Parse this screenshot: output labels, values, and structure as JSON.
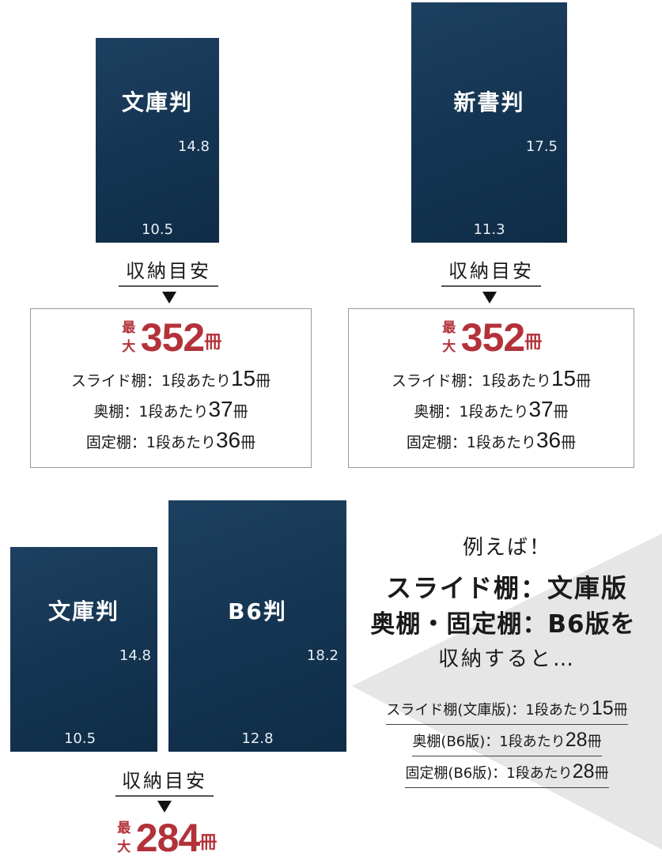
{
  "top_left": {
    "book": {
      "title": "文庫判",
      "height": "14.8",
      "width": "10.5"
    },
    "label": "収納目安",
    "max_prefix": "最大",
    "max_value": "352",
    "max_unit": "冊",
    "rows": [
      {
        "text": "スライド棚：1段あたり",
        "value": "15",
        "unit": "冊"
      },
      {
        "text": "奥棚：1段あたり",
        "value": "37",
        "unit": "冊"
      },
      {
        "text": "固定棚：1段あたり",
        "value": "36",
        "unit": "冊"
      }
    ]
  },
  "top_right": {
    "book": {
      "title": "新書判",
      "height": "17.5",
      "width": "11.3"
    },
    "label": "収納目安",
    "max_prefix": "最大",
    "max_value": "352",
    "max_unit": "冊",
    "rows": [
      {
        "text": "スライド棚：1段あたり",
        "value": "15",
        "unit": "冊"
      },
      {
        "text": "奥棚：1段あたり",
        "value": "37",
        "unit": "冊"
      },
      {
        "text": "固定棚：1段あたり",
        "value": "36",
        "unit": "冊"
      }
    ]
  },
  "bottom": {
    "book1": {
      "title": "文庫判",
      "height": "14.8",
      "width": "10.5"
    },
    "book2": {
      "title": "B6判",
      "height": "18.2",
      "width": "12.8"
    },
    "label": "収納目安",
    "max_prefix": "最大",
    "max_value": "284",
    "max_unit": "冊"
  },
  "example": {
    "intro": "例えば！",
    "line1": "スライド棚：文庫版",
    "line2": "奥棚・固定棚：B6版を",
    "line3": "収納すると…",
    "rows": [
      {
        "text": "スライド棚(文庫版)：1段あたり",
        "value": "15",
        "unit": "冊"
      },
      {
        "text": "奥棚(B6版)：1段あたり",
        "value": "28",
        "unit": "冊"
      },
      {
        "text": "固定棚(B6版)：1段あたり",
        "value": "28",
        "unit": "冊"
      }
    ]
  },
  "colors": {
    "book": "#143552",
    "accent": "#b3323a",
    "panel": "#e6e6e6"
  }
}
